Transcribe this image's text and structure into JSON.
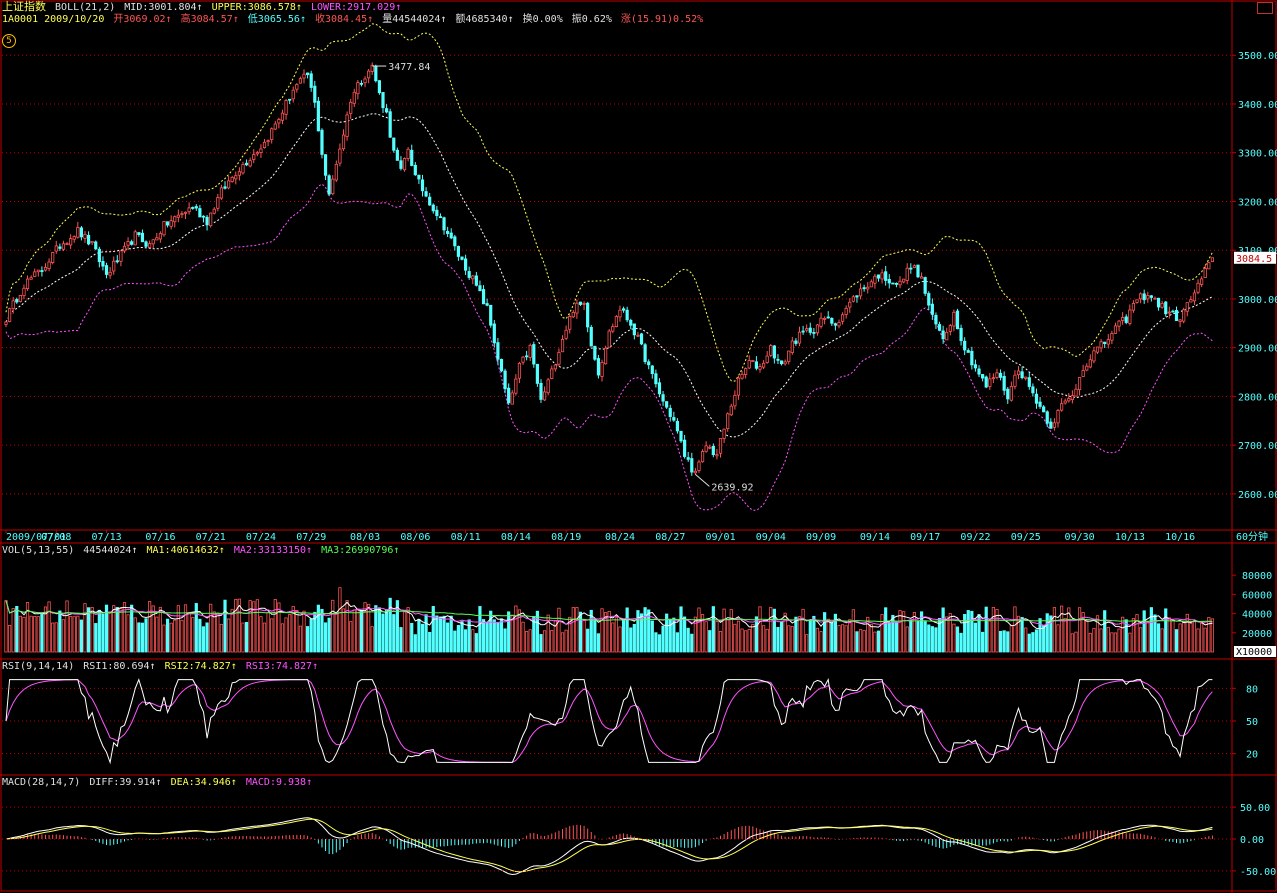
{
  "header": {
    "index_name": "上证指数",
    "boll_label": "BOLL(21,2)",
    "boll_mid": "MID:3001.804↑",
    "boll_upper": "UPPER:3086.578↑",
    "boll_lower": "LOWER:2917.029↑",
    "code_date": "1A0001 2009/10/20",
    "open": "开3069.02↑",
    "high": "高3084.57↑",
    "low": "低3065.56↑",
    "close": "收3084.45↑",
    "volume": "量44544024↑",
    "amount": "额4685340↑",
    "turnover": "换0.00%",
    "amplitude": "振0.62%",
    "change": "涨(15.91)0.52%",
    "circle_label": "5"
  },
  "vol_header": {
    "label": "VOL(5,13,55)",
    "value": "44544024↑",
    "ma1": "MA1:40614632↑",
    "ma2": "MA2:33133150↑",
    "ma3": "MA3:26990796↑"
  },
  "rsi_header": {
    "label": "RSI(9,14,14)",
    "rsi1": "RSI1:80.694↑",
    "rsi2": "RSI2:74.827↑",
    "rsi3": "RSI3:74.827↑"
  },
  "macd_header": {
    "label": "MACD(28,14,7)",
    "diff": "DIFF:39.914↑",
    "dea": "DEA:34.946↑",
    "macd": "MACD:9.938↑"
  },
  "colors": {
    "up": "#ff5454",
    "down": "#54ffff",
    "grid": "#c00000",
    "axis": "#54ffff",
    "boll_mid": "#ffffff",
    "boll_upper": "#ffff54",
    "boll_lower": "#ff54ff"
  },
  "chart_data": [
    {
      "type": "candlestick",
      "price_ticks": [
        3500,
        3400,
        3300,
        3200,
        3100,
        3000,
        2900,
        2800,
        2700,
        2600
      ],
      "ylim": [
        2530,
        3560
      ],
      "last_price": "3084.5",
      "annotations": [
        {
          "text": "3477.84",
          "at": "08/04"
        },
        {
          "text": "2639.92",
          "at": "09/01"
        }
      ],
      "x_labels": [
        "2009/07/01",
        "07/08",
        "07/13",
        "07/16",
        "07/21",
        "07/24",
        "07/29",
        "08/03",
        "08/06",
        "08/11",
        "08/14",
        "08/19",
        "08/24",
        "08/27",
        "09/01",
        "09/04",
        "09/09",
        "09/14",
        "09/17",
        "09/22",
        "09/25",
        "09/30",
        "10/13",
        "10/16"
      ],
      "period_label": "60分钟",
      "close_path_points": [
        [
          0,
          2960
        ],
        [
          5,
          3030
        ],
        [
          10,
          3060
        ],
        [
          15,
          3110
        ],
        [
          20,
          3140
        ],
        [
          24,
          3110
        ],
        [
          28,
          3050
        ],
        [
          32,
          3090
        ],
        [
          36,
          3130
        ],
        [
          40,
          3110
        ],
        [
          44,
          3150
        ],
        [
          48,
          3170
        ],
        [
          52,
          3190
        ],
        [
          56,
          3160
        ],
        [
          60,
          3220
        ],
        [
          64,
          3260
        ],
        [
          68,
          3290
        ],
        [
          72,
          3320
        ],
        [
          76,
          3370
        ],
        [
          80,
          3430
        ],
        [
          84,
          3460
        ],
        [
          86,
          3400
        ],
        [
          88,
          3300
        ],
        [
          90,
          3210
        ],
        [
          92,
          3280
        ],
        [
          94,
          3340
        ],
        [
          96,
          3410
        ],
        [
          98,
          3440
        ],
        [
          100,
          3460
        ],
        [
          102,
          3477
        ],
        [
          104,
          3420
        ],
        [
          106,
          3380
        ],
        [
          108,
          3300
        ],
        [
          110,
          3260
        ],
        [
          112,
          3310
        ],
        [
          114,
          3250
        ],
        [
          118,
          3200
        ],
        [
          122,
          3150
        ],
        [
          126,
          3090
        ],
        [
          130,
          3040
        ],
        [
          134,
          2980
        ],
        [
          137,
          2880
        ],
        [
          140,
          2780
        ],
        [
          143,
          2860
        ],
        [
          146,
          2900
        ],
        [
          149,
          2790
        ],
        [
          152,
          2850
        ],
        [
          155,
          2920
        ],
        [
          158,
          2980
        ],
        [
          161,
          2990
        ],
        [
          163,
          2910
        ],
        [
          165,
          2850
        ],
        [
          168,
          2930
        ],
        [
          171,
          2980
        ],
        [
          174,
          2950
        ],
        [
          177,
          2900
        ],
        [
          180,
          2840
        ],
        [
          183,
          2790
        ],
        [
          186,
          2750
        ],
        [
          189,
          2680
        ],
        [
          192,
          2640
        ],
        [
          195,
          2700
        ],
        [
          198,
          2680
        ],
        [
          201,
          2760
        ],
        [
          204,
          2830
        ],
        [
          207,
          2870
        ],
        [
          210,
          2860
        ],
        [
          213,
          2900
        ],
        [
          216,
          2860
        ],
        [
          219,
          2910
        ],
        [
          222,
          2930
        ],
        [
          225,
          2940
        ],
        [
          228,
          2960
        ],
        [
          231,
          2950
        ],
        [
          234,
          2980
        ],
        [
          237,
          3010
        ],
        [
          240,
          3030
        ],
        [
          243,
          3050
        ],
        [
          246,
          3040
        ],
        [
          249,
          3030
        ],
        [
          252,
          3070
        ],
        [
          255,
          3040
        ],
        [
          258,
          2960
        ],
        [
          261,
          2920
        ],
        [
          264,
          2970
        ],
        [
          267,
          2900
        ],
        [
          270,
          2860
        ],
        [
          273,
          2820
        ],
        [
          276,
          2850
        ],
        [
          279,
          2800
        ],
        [
          282,
          2860
        ],
        [
          285,
          2820
        ],
        [
          288,
          2780
        ],
        [
          291,
          2740
        ],
        [
          294,
          2780
        ],
        [
          297,
          2800
        ],
        [
          300,
          2860
        ],
        [
          303,
          2890
        ],
        [
          306,
          2910
        ],
        [
          309,
          2940
        ],
        [
          312,
          2960
        ],
        [
          315,
          3000
        ],
        [
          318,
          3010
        ],
        [
          321,
          2990
        ],
        [
          324,
          2970
        ],
        [
          327,
          2960
        ],
        [
          330,
          3000
        ],
        [
          333,
          3040
        ],
        [
          336,
          3084
        ]
      ],
      "bars": 337
    },
    {
      "type": "bar",
      "name": "VOL",
      "ticks": [
        80000,
        60000,
        40000,
        20000
      ],
      "unit": "X10000",
      "ylim": [
        0,
        100000
      ]
    },
    {
      "type": "line",
      "name": "RSI",
      "ticks": [
        80,
        50,
        20
      ],
      "ylim": [
        5,
        95
      ]
    },
    {
      "type": "bar+line",
      "name": "MACD",
      "ticks": [
        "50.00",
        "0.00",
        "-50.00"
      ],
      "ylim": [
        -80,
        80
      ]
    }
  ]
}
